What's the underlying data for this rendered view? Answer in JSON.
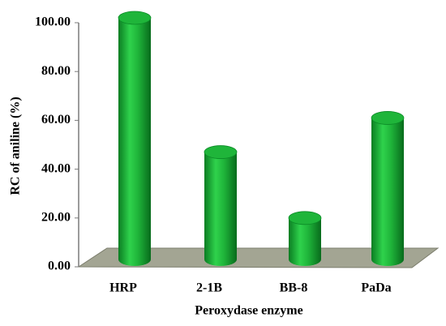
{
  "chart_data": {
    "type": "bar3d",
    "y_label": "RC of aniline  (%)",
    "x_label": "Peroxydase enzyme",
    "categories": [
      "HRP",
      "2-1B",
      "BB-8",
      "PaDa"
    ],
    "values": [
      99,
      44,
      17,
      58
    ],
    "color": "#1fb53a",
    "ylim": [
      0,
      100
    ],
    "yticks": [
      {
        "value": 0,
        "label": "0.00"
      },
      {
        "value": 20,
        "label": "20.00"
      },
      {
        "value": 40,
        "label": "40.00"
      },
      {
        "value": 60,
        "label": "60.00"
      },
      {
        "value": 80,
        "label": "80.00"
      },
      {
        "value": 100,
        "label": "100.00"
      }
    ],
    "grid": false
  }
}
